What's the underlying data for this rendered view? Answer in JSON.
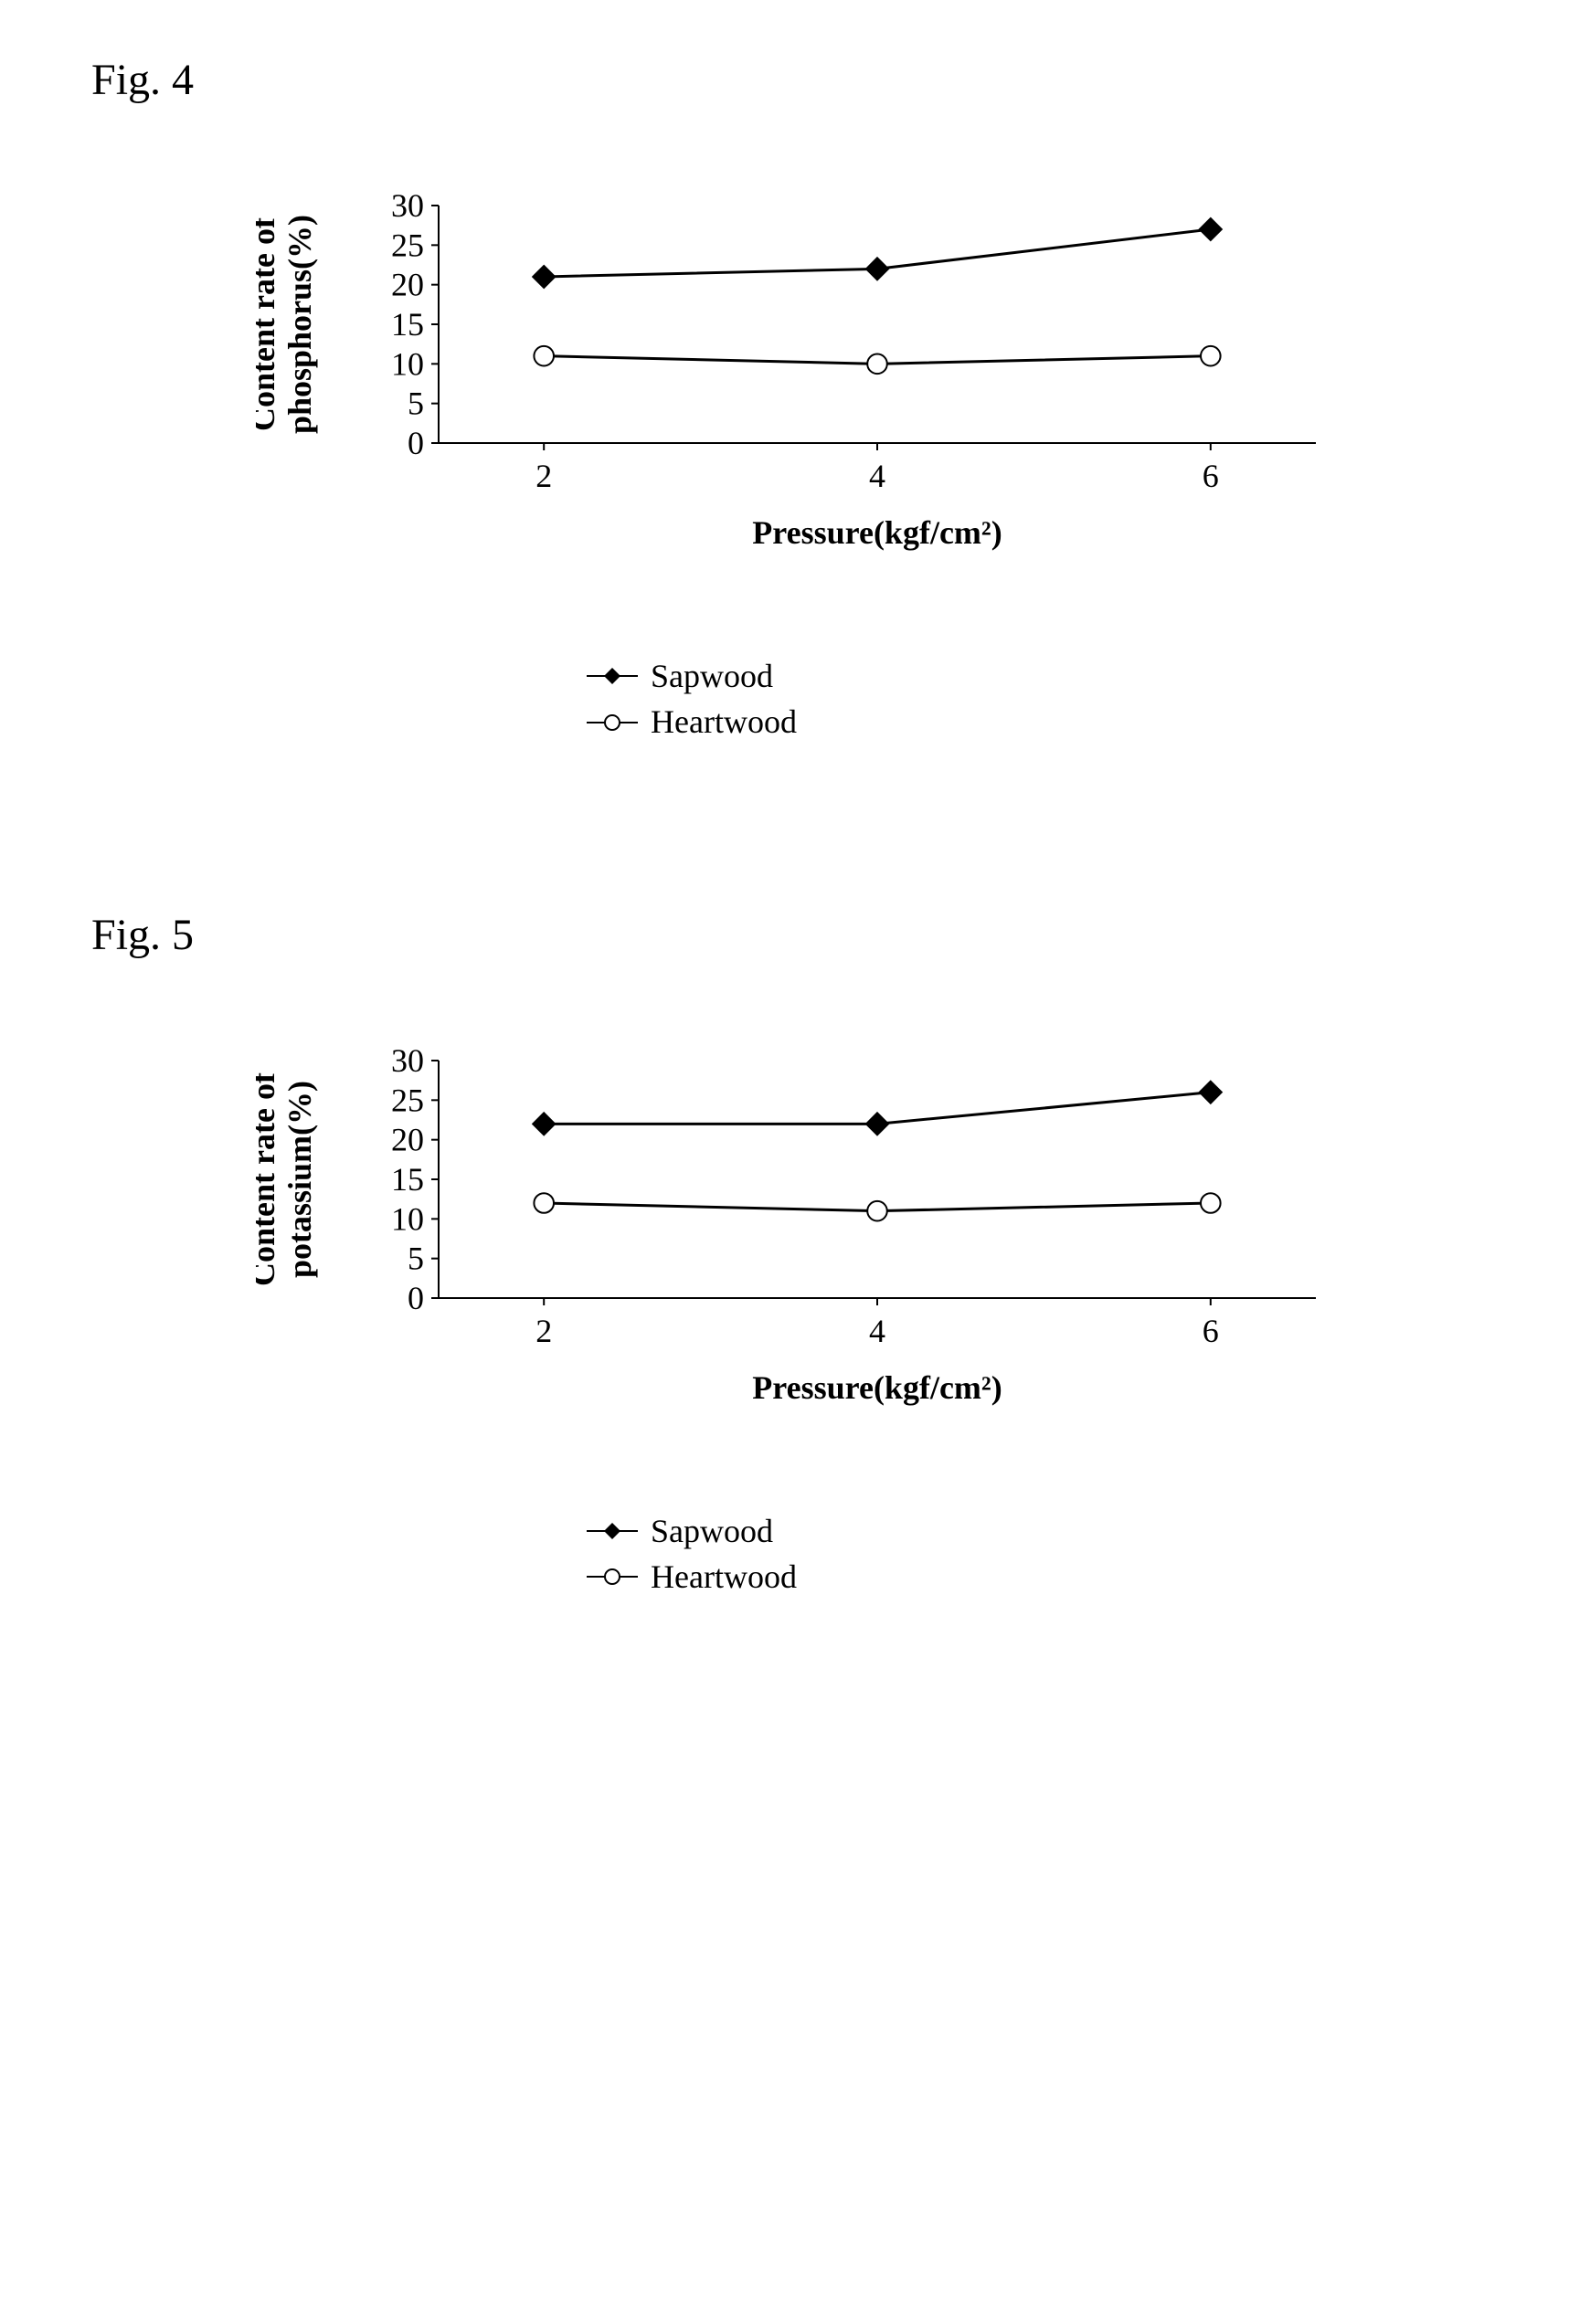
{
  "figures": [
    {
      "title": "Fig. 4",
      "chart": {
        "type": "line",
        "ylabel": "Content rate of\nphosphorus(%)",
        "xlabel": "Pressure(kgf/cm²)",
        "x_categories": [
          2,
          4,
          6
        ],
        "ylim": [
          0,
          30
        ],
        "ytick_step": 5,
        "series": [
          {
            "name": "Sapwood",
            "marker": "diamond-filled",
            "color": "#000000",
            "fill": "#000000",
            "values": [
              21,
              22,
              27
            ]
          },
          {
            "name": "Heartwood",
            "marker": "circle-open",
            "color": "#000000",
            "fill": "#ffffff",
            "values": [
              11,
              10,
              11
            ]
          }
        ],
        "axis_color": "#000000",
        "background_color": "#ffffff",
        "line_width": 3,
        "marker_size": 12,
        "label_fontsize": 36,
        "tick_fontsize": 36,
        "plot_aspect": "wide"
      }
    },
    {
      "title": "Fig. 5",
      "chart": {
        "type": "line",
        "ylabel": "Content rate of\npotassium(%)",
        "xlabel": "Pressure(kgf/cm²)",
        "x_categories": [
          2,
          4,
          6
        ],
        "ylim": [
          0,
          30
        ],
        "ytick_step": 5,
        "series": [
          {
            "name": "Sapwood",
            "marker": "diamond-filled",
            "color": "#000000",
            "fill": "#000000",
            "values": [
              22,
              22,
              26
            ]
          },
          {
            "name": "Heartwood",
            "marker": "circle-open",
            "color": "#000000",
            "fill": "#ffffff",
            "values": [
              12,
              11,
              12
            ]
          }
        ],
        "axis_color": "#000000",
        "background_color": "#ffffff",
        "line_width": 3,
        "marker_size": 12,
        "label_fontsize": 36,
        "tick_fontsize": 36,
        "plot_aspect": "wide"
      }
    }
  ],
  "legend_labels": {
    "sapwood": "Sapwood",
    "heartwood": "Heartwood"
  }
}
